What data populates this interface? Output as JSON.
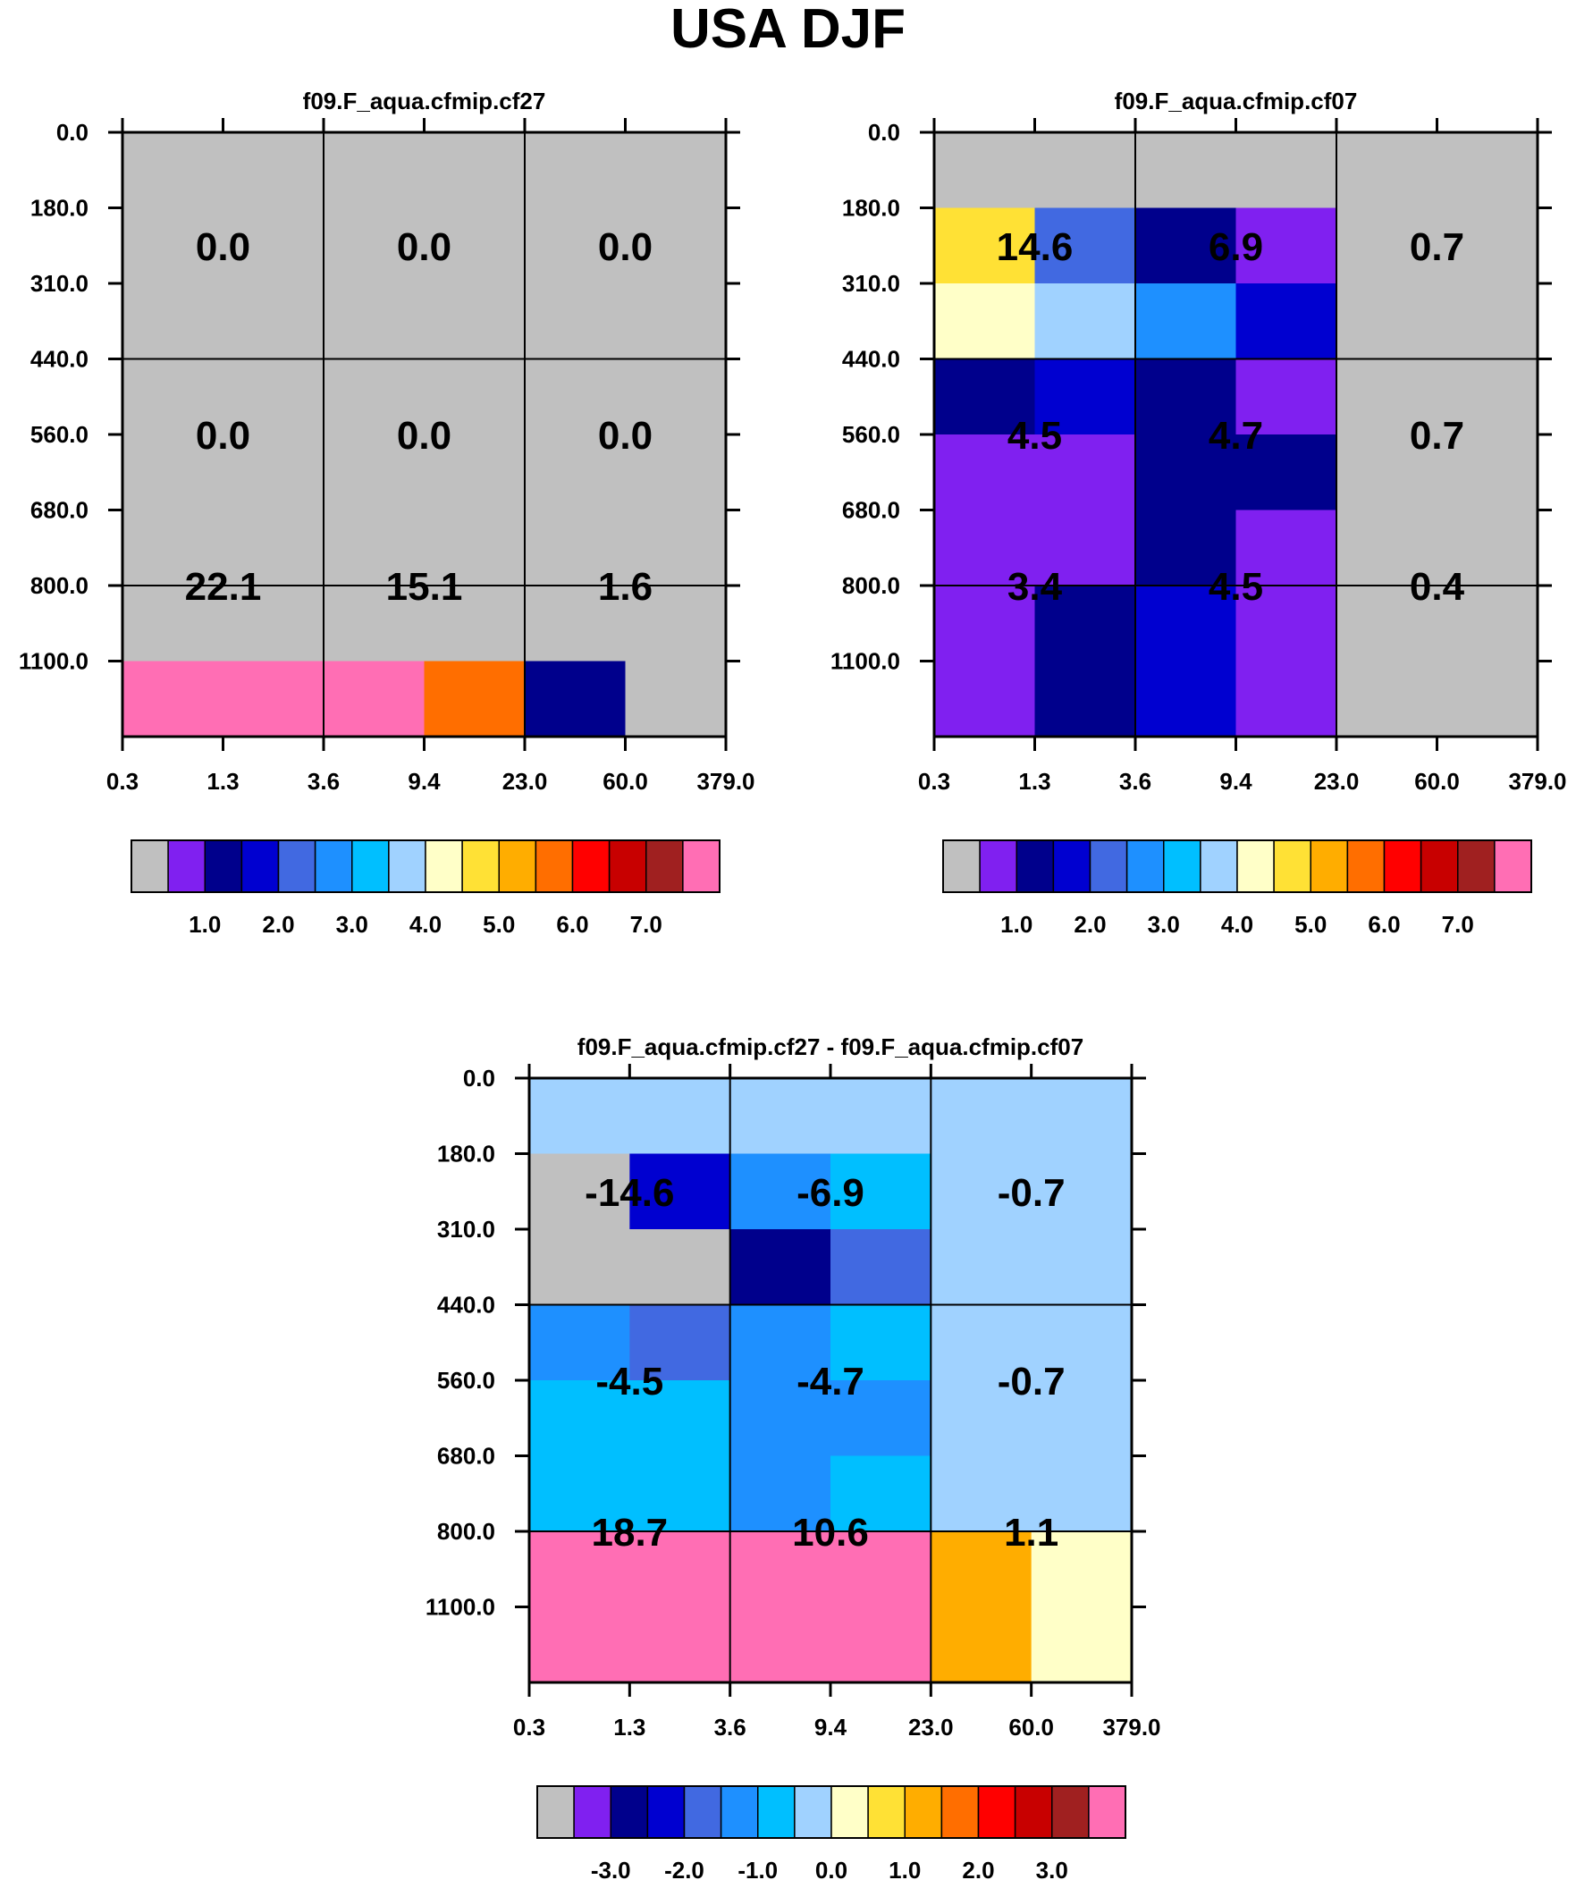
{
  "title": "USA DJF",
  "palette": [
    "#c0c0c0",
    "#8020f0",
    "#00008c",
    "#0000d0",
    "#4169e1",
    "#1e90ff",
    "#00bfff",
    "#a0d2ff",
    "#ffffc8",
    "#ffe135",
    "#ffad00",
    "#ff6e00",
    "#ff0000",
    "#c80000",
    "#a02020",
    "#ff6eb4"
  ],
  "chart_data": [
    {
      "type": "heatmap",
      "title": "f09.F_aqua.cfmip.cf27",
      "x_ticks": [
        "0.3",
        "1.3",
        "3.6",
        "9.4",
        "23.0",
        "60.0",
        "379.0"
      ],
      "y_ticks": [
        "0.0",
        "180.0",
        "310.0",
        "440.0",
        "560.0",
        "680.0",
        "800.0",
        "1100.0"
      ],
      "cells": [
        [
          0,
          0,
          0,
          0,
          0,
          0
        ],
        [
          0,
          0,
          0,
          0,
          0,
          0
        ],
        [
          0,
          0,
          0,
          0,
          0,
          0
        ],
        [
          0,
          0,
          0,
          0,
          0,
          0
        ],
        [
          0,
          0,
          0,
          0,
          0,
          0
        ],
        [
          0,
          0,
          0,
          0,
          0,
          0
        ],
        [
          0,
          0,
          0,
          0,
          0,
          0
        ],
        [
          15,
          15,
          15,
          11,
          2,
          0
        ]
      ],
      "labels": [
        [
          "0.0",
          "0.0",
          "0.0"
        ],
        [
          "0.0",
          "0.0",
          "0.0"
        ],
        [
          "22.1",
          "15.1",
          "1.6"
        ]
      ],
      "colorbar_labels": [
        "1.0",
        "2.0",
        "3.0",
        "4.0",
        "5.0",
        "6.0",
        "7.0"
      ]
    },
    {
      "type": "heatmap",
      "title": "f09.F_aqua.cfmip.cf07",
      "x_ticks": [
        "0.3",
        "1.3",
        "3.6",
        "9.4",
        "23.0",
        "60.0",
        "379.0"
      ],
      "y_ticks": [
        "0.0",
        "180.0",
        "310.0",
        "440.0",
        "560.0",
        "680.0",
        "800.0",
        "1100.0"
      ],
      "cells": [
        [
          0,
          0,
          0,
          0,
          0,
          0
        ],
        [
          9,
          4,
          2,
          1,
          0,
          0
        ],
        [
          8,
          7,
          5,
          3,
          0,
          0
        ],
        [
          2,
          3,
          2,
          1,
          0,
          0
        ],
        [
          1,
          1,
          2,
          2,
          0,
          0
        ],
        [
          1,
          1,
          2,
          1,
          0,
          0
        ],
        [
          1,
          2,
          3,
          1,
          0,
          0
        ],
        [
          1,
          2,
          3,
          1,
          0,
          0
        ]
      ],
      "labels": [
        [
          "14.6",
          "6.9",
          "0.7"
        ],
        [
          "4.5",
          "4.7",
          "0.7"
        ],
        [
          "3.4",
          "4.5",
          "0.4"
        ]
      ],
      "colorbar_labels": [
        "1.0",
        "2.0",
        "3.0",
        "4.0",
        "5.0",
        "6.0",
        "7.0"
      ]
    },
    {
      "type": "heatmap",
      "title": "f09.F_aqua.cfmip.cf27 - f09.F_aqua.cfmip.cf07",
      "x_ticks": [
        "0.3",
        "1.3",
        "3.6",
        "9.4",
        "23.0",
        "60.0",
        "379.0"
      ],
      "y_ticks": [
        "0.0",
        "180.0",
        "310.0",
        "440.0",
        "560.0",
        "680.0",
        "800.0",
        "1100.0"
      ],
      "cells": [
        [
          7,
          7,
          7,
          7,
          7,
          7
        ],
        [
          0,
          3,
          5,
          6,
          7,
          7
        ],
        [
          0,
          0,
          2,
          4,
          7,
          7
        ],
        [
          5,
          4,
          5,
          6,
          7,
          7
        ],
        [
          6,
          6,
          5,
          5,
          7,
          7
        ],
        [
          6,
          6,
          5,
          6,
          7,
          7
        ],
        [
          15,
          15,
          15,
          15,
          10,
          8
        ],
        [
          15,
          15,
          15,
          15,
          10,
          8
        ]
      ],
      "labels": [
        [
          "-14.6",
          "-6.9",
          "-0.7"
        ],
        [
          "-4.5",
          "-4.7",
          "-0.7"
        ],
        [
          "18.7",
          "10.6",
          "1.1"
        ]
      ],
      "colorbar_labels": [
        "-3.0",
        "-2.0",
        "-1.0",
        "0.0",
        "1.0",
        "2.0",
        "3.0"
      ]
    }
  ]
}
